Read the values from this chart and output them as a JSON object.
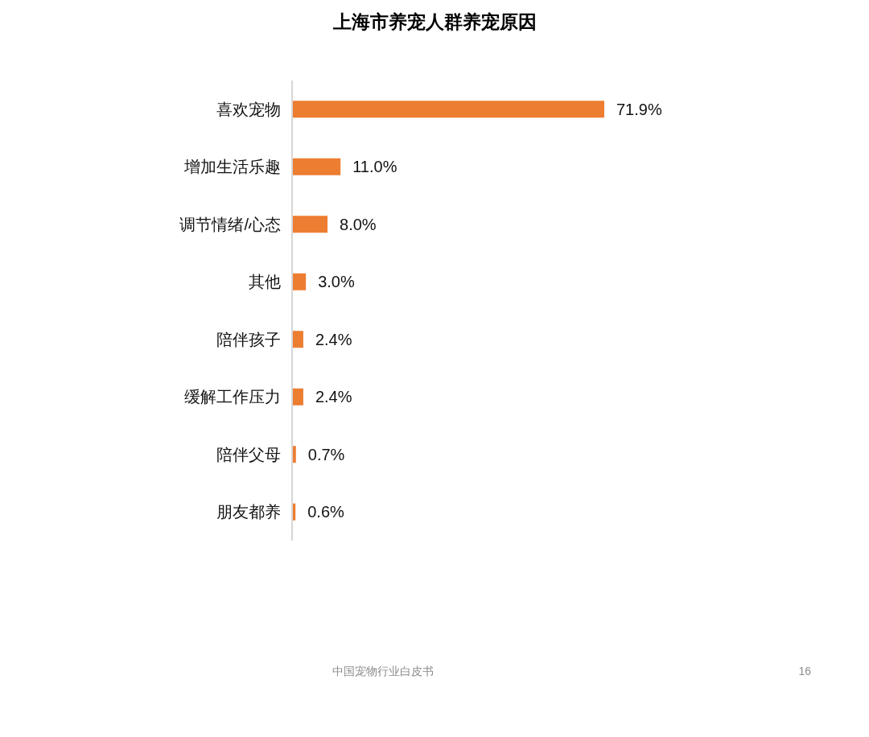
{
  "chart_data": {
    "type": "bar",
    "orientation": "horizontal",
    "title": "上海市养宠人群养宠原因",
    "categories": [
      "喜欢宠物",
      "增加生活乐趣",
      "调节情绪/心态",
      "其他",
      "陪伴孩子",
      "缓解工作压力",
      "陪伴父母",
      "朋友都养"
    ],
    "values": [
      71.9,
      11.0,
      8.0,
      3.0,
      2.4,
      2.4,
      0.7,
      0.6
    ],
    "color": "#ed7d31",
    "value_labels": [
      "71.9%",
      "11.0%",
      "8.0%",
      "3.0%",
      "2.4%",
      "2.4%",
      "0.7%",
      "0.6%"
    ],
    "tick_labels": "y",
    "annotations": [
      "中国宠物行业白皮书",
      "16"
    ]
  }
}
